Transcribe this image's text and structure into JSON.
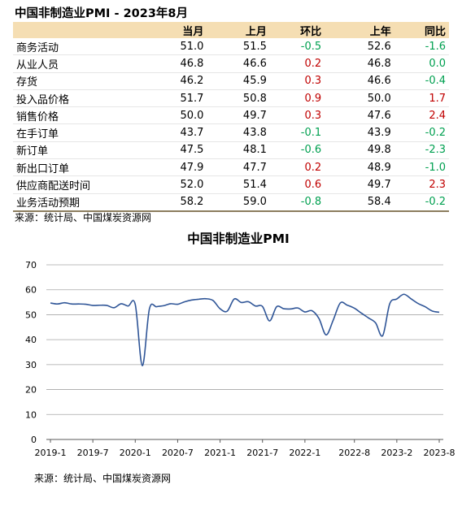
{
  "page_title": "中国非制造业PMI - 2023年8月",
  "table": {
    "headers": [
      "",
      "当月",
      "上月",
      "环比",
      "上年",
      "同比"
    ],
    "rows": [
      {
        "name": "商务活动",
        "current": "51.0",
        "previous": "51.5",
        "mom": "-0.5",
        "last_year": "52.6",
        "yoy": "-1.6"
      },
      {
        "name": "从业人员",
        "current": "46.8",
        "previous": "46.6",
        "mom": "0.2",
        "last_year": "46.8",
        "yoy": "0.0"
      },
      {
        "name": "存货",
        "current": "46.2",
        "previous": "45.9",
        "mom": "0.3",
        "last_year": "46.6",
        "yoy": "-0.4"
      },
      {
        "name": "投入品价格",
        "current": "51.7",
        "previous": "50.8",
        "mom": "0.9",
        "last_year": "50.0",
        "yoy": "1.7"
      },
      {
        "name": "销售价格",
        "current": "50.0",
        "previous": "49.7",
        "mom": "0.3",
        "last_year": "47.6",
        "yoy": "2.4"
      },
      {
        "name": "在手订单",
        "current": "43.7",
        "previous": "43.8",
        "mom": "-0.1",
        "last_year": "43.9",
        "yoy": "-0.2"
      },
      {
        "name": "新订单",
        "current": "47.5",
        "previous": "48.1",
        "mom": "-0.6",
        "last_year": "49.8",
        "yoy": "-2.3"
      },
      {
        "name": "新出口订单",
        "current": "47.9",
        "previous": "47.7",
        "mom": "0.2",
        "last_year": "48.9",
        "yoy": "-1.0"
      },
      {
        "name": "供应商配送时间",
        "current": "52.0",
        "previous": "51.4",
        "mom": "0.6",
        "last_year": "49.7",
        "yoy": "2.3"
      },
      {
        "name": "业务活动预期",
        "current": "58.2",
        "previous": "59.0",
        "mom": "-0.8",
        "last_year": "58.4",
        "yoy": "-0.2"
      }
    ]
  },
  "colors": {
    "positive": "#c00000",
    "negative": "#00a050",
    "header_bg": "#f5deb3",
    "line": "#2f5597",
    "grid": "#a6a6a6"
  },
  "source_top": "来源：统计局、中国煤炭资源网",
  "source_bottom": "来源：统计局、中国煤炭资源网",
  "chart_data": {
    "type": "line",
    "title": "中国非制造业PMI",
    "xlabel": "",
    "ylabel": "",
    "ylim": [
      0,
      70
    ],
    "yticks": [
      0,
      10,
      20,
      30,
      40,
      50,
      60,
      70
    ],
    "xticks": [
      "2019-1",
      "2019-7",
      "2020-1",
      "2020-7",
      "2021-1",
      "2021-7",
      "2022-1",
      "2022-8",
      "2023-2",
      "2023-8"
    ],
    "grid": true,
    "legend": "none",
    "x": [
      "2019-1",
      "2019-2",
      "2019-3",
      "2019-4",
      "2019-5",
      "2019-6",
      "2019-7",
      "2019-8",
      "2019-9",
      "2019-10",
      "2019-11",
      "2019-12",
      "2020-1",
      "2020-2",
      "2020-3",
      "2020-4",
      "2020-5",
      "2020-6",
      "2020-7",
      "2020-8",
      "2020-9",
      "2020-10",
      "2020-11",
      "2020-12",
      "2021-1",
      "2021-2",
      "2021-3",
      "2021-4",
      "2021-5",
      "2021-6",
      "2021-7",
      "2021-8",
      "2021-9",
      "2021-10",
      "2021-11",
      "2021-12",
      "2022-1",
      "2022-2",
      "2022-3",
      "2022-4",
      "2022-5",
      "2022-6",
      "2022-7",
      "2022-8",
      "2022-9",
      "2022-10",
      "2022-11",
      "2022-12",
      "2023-1",
      "2023-2",
      "2023-3",
      "2023-4",
      "2023-5",
      "2023-6",
      "2023-7",
      "2023-8"
    ],
    "series": [
      {
        "values": [
          54.7,
          54.3,
          54.8,
          54.3,
          54.3,
          54.2,
          53.7,
          53.8,
          53.7,
          52.8,
          54.4,
          53.5,
          54.1,
          29.6,
          52.3,
          53.2,
          53.6,
          54.4,
          54.2,
          55.2,
          55.9,
          56.2,
          56.4,
          55.7,
          52.4,
          51.4,
          56.3,
          54.9,
          55.2,
          53.5,
          53.3,
          47.5,
          53.2,
          52.4,
          52.3,
          52.7,
          51.1,
          51.6,
          48.4,
          41.9,
          47.8,
          54.7,
          53.8,
          52.6,
          50.6,
          48.7,
          46.7,
          41.6,
          54.4,
          56.3,
          58.2,
          56.4,
          54.5,
          53.2,
          51.5,
          51.0
        ]
      }
    ]
  }
}
